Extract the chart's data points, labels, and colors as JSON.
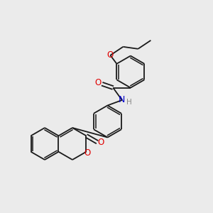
{
  "background_color": "#ebebeb",
  "bond_color": "#1a1a1a",
  "atom_colors": {
    "O": "#e00000",
    "N": "#0000cc",
    "H": "#888888",
    "C": "#1a1a1a"
  },
  "figsize": [
    3.0,
    3.0
  ],
  "dpi": 100,
  "xlim": [
    0,
    10
  ],
  "ylim": [
    0,
    10
  ],
  "lw": 1.3,
  "off": 0.1,
  "r6": 0.75
}
